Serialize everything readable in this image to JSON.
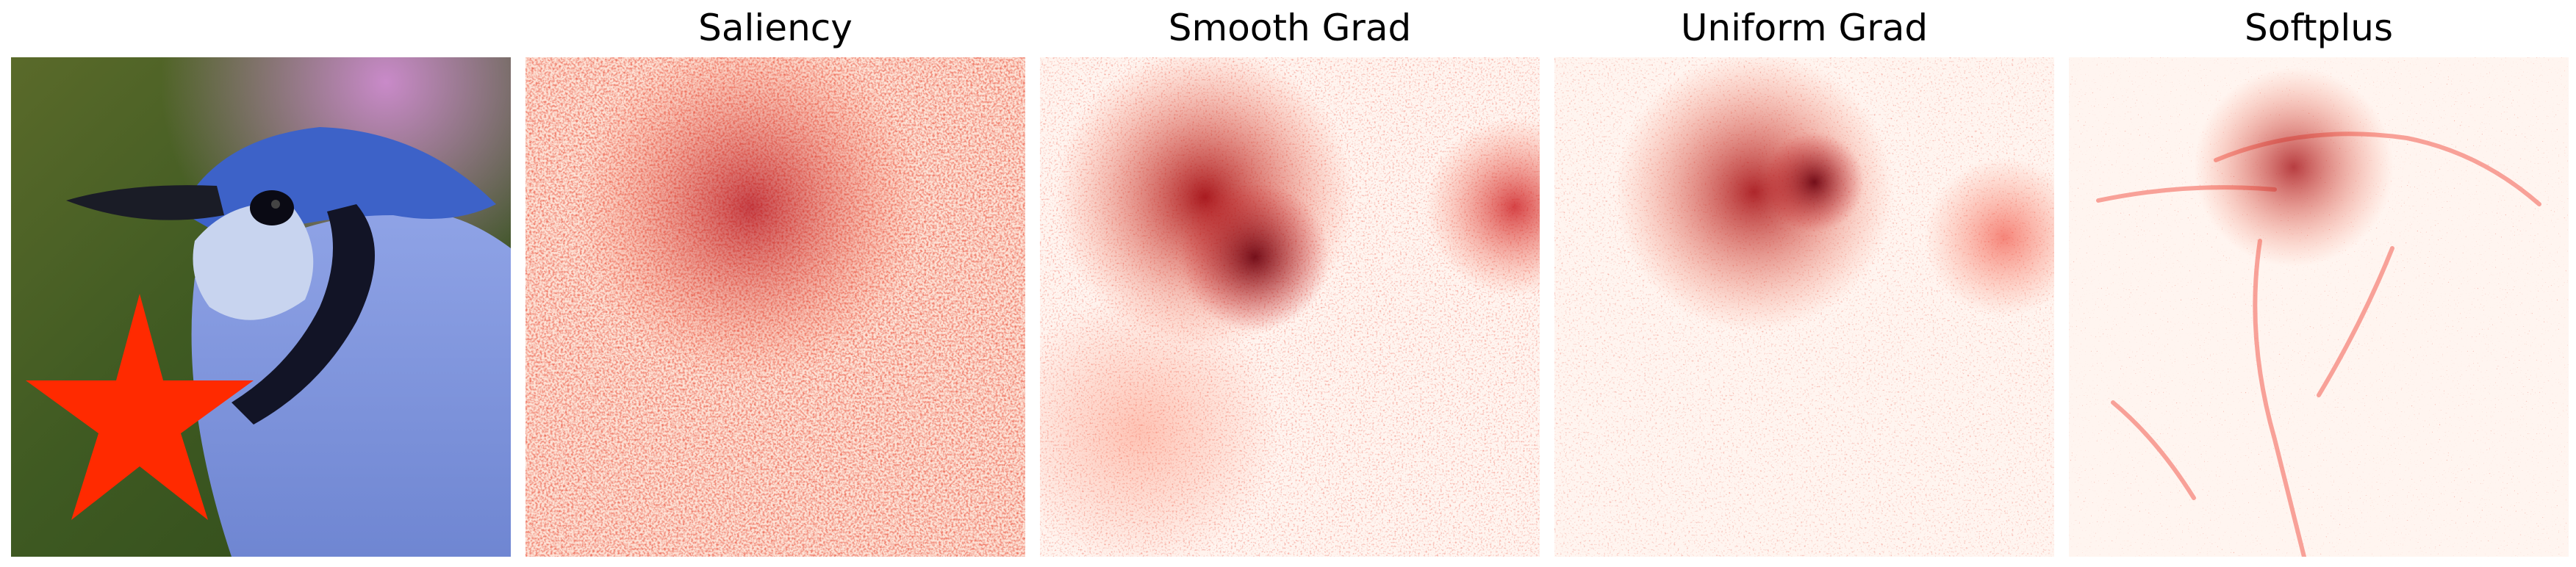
{
  "figure": {
    "panels": [
      {
        "title": "",
        "kind": "input",
        "content": "blue-jay-photo-with-red-star-occlusion",
        "colormap": [
          "#3a5a1e",
          "#4c6fd0",
          "#ff2a00"
        ]
      },
      {
        "title": "Saliency",
        "kind": "heatmap",
        "colormap": [
          "#fff5f0",
          "#fb6a4a",
          "#67000d"
        ],
        "intensity": 0.55,
        "spread": "diffuse"
      },
      {
        "title": "Smooth Grad",
        "kind": "heatmap",
        "colormap": [
          "#fff5f0",
          "#fb6a4a",
          "#67000d"
        ],
        "intensity": 0.7,
        "spread": "head-focused"
      },
      {
        "title": "Uniform Grad",
        "kind": "heatmap",
        "colormap": [
          "#fff5f0",
          "#fb6a4a",
          "#67000d"
        ],
        "intensity": 0.65,
        "spread": "head-focused"
      },
      {
        "title": "Softplus",
        "kind": "heatmap",
        "colormap": [
          "#fff5f0",
          "#fb6a4a",
          "#67000d"
        ],
        "intensity": 0.45,
        "spread": "sparse-outline"
      }
    ]
  }
}
